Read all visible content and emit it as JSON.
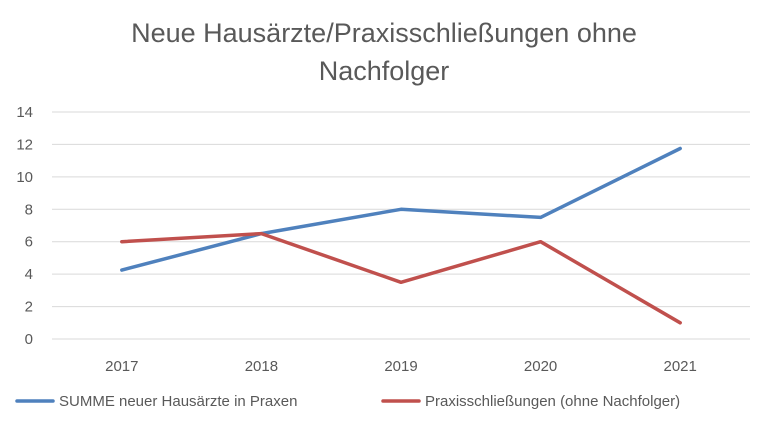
{
  "chart_data": {
    "type": "line",
    "title_lines": [
      "Neue Hausärzte/Praxisschließungen ohne",
      "Nachfolger"
    ],
    "categories": [
      "2017",
      "2018",
      "2019",
      "2020",
      "2021"
    ],
    "ylim": [
      0,
      14
    ],
    "yticks": [
      "0",
      "2",
      "4",
      "6",
      "8",
      "10",
      "12",
      "14"
    ],
    "grid": true,
    "legend_position": "bottom",
    "series": [
      {
        "name": "SUMME neuer Hausärzte in Praxen",
        "color": "#4F81BD",
        "values": [
          4.25,
          6.5,
          8,
          7.5,
          11.75
        ]
      },
      {
        "name": "Praxisschließungen (ohne Nachfolger)",
        "color": "#C0504D",
        "values": [
          6,
          6.5,
          3.5,
          6,
          1
        ]
      }
    ]
  }
}
